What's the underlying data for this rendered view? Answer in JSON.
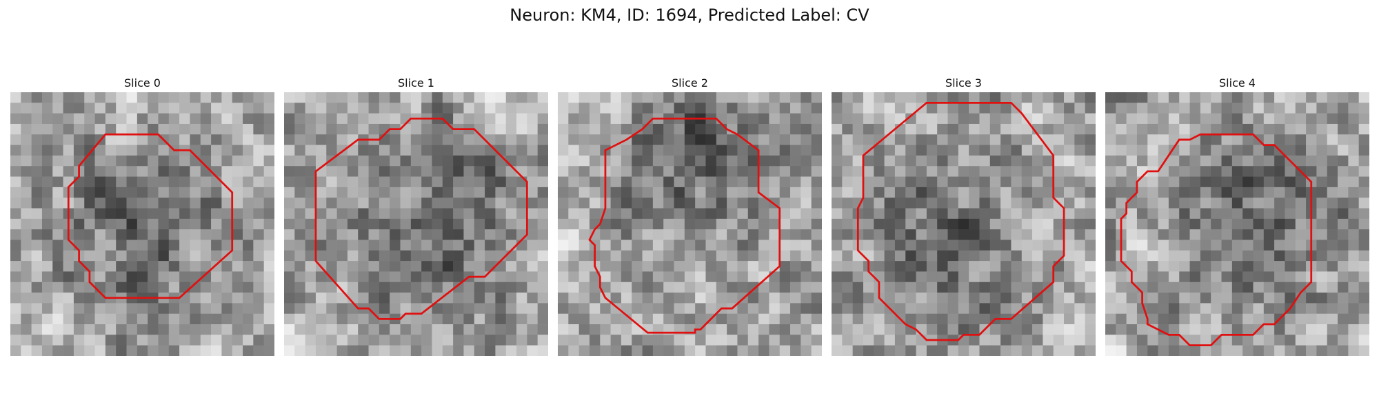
{
  "figure": {
    "title": "Neuron: KM4, ID: 1694, Predicted Label: CV",
    "grid": {
      "cols": 25,
      "rows": 25
    },
    "contour_color": "#e01010"
  },
  "panels": [
    {
      "title": "Slice 0",
      "seed": 11,
      "dark_center": [
        0.52,
        0.52
      ],
      "contour": [
        [
          9,
          4
        ],
        [
          14,
          4
        ],
        [
          15.5,
          5.5
        ],
        [
          17,
          5.5
        ],
        [
          21,
          9.5
        ],
        [
          21,
          15
        ],
        [
          16,
          19.5
        ],
        [
          9,
          19.5
        ],
        [
          7.5,
          18
        ],
        [
          7.5,
          17
        ],
        [
          6.5,
          16
        ],
        [
          6.5,
          15
        ],
        [
          5.5,
          14
        ],
        [
          5.5,
          9
        ],
        [
          6.5,
          8
        ],
        [
          6.5,
          7
        ]
      ]
    },
    {
      "title": "Slice 1",
      "seed": 23,
      "dark_center": [
        0.58,
        0.45
      ],
      "contour": [
        [
          7,
          4.5
        ],
        [
          9,
          4.5
        ],
        [
          10,
          3.5
        ],
        [
          11,
          3.5
        ],
        [
          12,
          2.5
        ],
        [
          15,
          2.5
        ],
        [
          16,
          3.5
        ],
        [
          18,
          3.5
        ],
        [
          23,
          8.5
        ],
        [
          23,
          13.5
        ],
        [
          19,
          17.5
        ],
        [
          17.5,
          17.5
        ],
        [
          13,
          21
        ],
        [
          11.5,
          21
        ],
        [
          11,
          21.5
        ],
        [
          9,
          21.5
        ],
        [
          8,
          20.5
        ],
        [
          7,
          20.5
        ],
        [
          3,
          16
        ],
        [
          3,
          7.5
        ]
      ]
    },
    {
      "title": "Slice 2",
      "seed": 37,
      "dark_center": [
        0.5,
        0.2
      ],
      "contour": [
        [
          9,
          2.5
        ],
        [
          15,
          2.5
        ],
        [
          16,
          3.5
        ],
        [
          17,
          4
        ],
        [
          19,
          5.5
        ],
        [
          19,
          9.5
        ],
        [
          21,
          11
        ],
        [
          21,
          16.5
        ],
        [
          16.5,
          20.5
        ],
        [
          15.5,
          20.5
        ],
        [
          13.5,
          22.5
        ],
        [
          13,
          22.5
        ],
        [
          13,
          22.8
        ],
        [
          8.5,
          22.8
        ],
        [
          4.5,
          19.5
        ],
        [
          4,
          18.5
        ],
        [
          4,
          17.5
        ],
        [
          3.5,
          16.5
        ],
        [
          3.5,
          14.5
        ],
        [
          3,
          14
        ],
        [
          3.5,
          13
        ],
        [
          4,
          12.5
        ],
        [
          4.5,
          11
        ],
        [
          4.5,
          5.5
        ],
        [
          6.5,
          4.5
        ],
        [
          8,
          3.5
        ]
      ]
    },
    {
      "title": "Slice 3",
      "seed": 53,
      "dark_center": [
        0.45,
        0.55
      ],
      "contour": [
        [
          9,
          1
        ],
        [
          17,
          1
        ],
        [
          18,
          2
        ],
        [
          21,
          6
        ],
        [
          21,
          10
        ],
        [
          22,
          11
        ],
        [
          22,
          15.5
        ],
        [
          21,
          16.5
        ],
        [
          21,
          18
        ],
        [
          17,
          21.5
        ],
        [
          15.5,
          21.5
        ],
        [
          14,
          23
        ],
        [
          12.5,
          23
        ],
        [
          12,
          23.5
        ],
        [
          9,
          23.5
        ],
        [
          8,
          22.5
        ],
        [
          7,
          22
        ],
        [
          5,
          20
        ],
        [
          4.5,
          19.5
        ],
        [
          4.5,
          18
        ],
        [
          3.5,
          17
        ],
        [
          3.5,
          16
        ],
        [
          2.5,
          15
        ],
        [
          2.5,
          14
        ],
        [
          2.5,
          11
        ],
        [
          3,
          10
        ],
        [
          3,
          6
        ]
      ]
    },
    {
      "title": "Slice 4",
      "seed": 71,
      "dark_center": [
        0.55,
        0.5
      ],
      "contour": [
        [
          7,
          4.5
        ],
        [
          8,
          4.5
        ],
        [
          9,
          4
        ],
        [
          14,
          4
        ],
        [
          15,
          5
        ],
        [
          16,
          5
        ],
        [
          19.5,
          8.5
        ],
        [
          19.5,
          18
        ],
        [
          18.5,
          19
        ],
        [
          17.5,
          20.5
        ],
        [
          16,
          22
        ],
        [
          15,
          22
        ],
        [
          14,
          23
        ],
        [
          11,
          23
        ],
        [
          10,
          24
        ],
        [
          8,
          24
        ],
        [
          7,
          23
        ],
        [
          6,
          23
        ],
        [
          4,
          22
        ],
        [
          4,
          21.5
        ],
        [
          3.5,
          20
        ],
        [
          3.5,
          19
        ],
        [
          2.5,
          18
        ],
        [
          2.5,
          17
        ],
        [
          1.5,
          16
        ],
        [
          1.5,
          12
        ],
        [
          2,
          11.5
        ],
        [
          2,
          10.5
        ],
        [
          3,
          9.5
        ],
        [
          3,
          8.5
        ],
        [
          4,
          7.5
        ],
        [
          5,
          7.5
        ]
      ]
    }
  ]
}
